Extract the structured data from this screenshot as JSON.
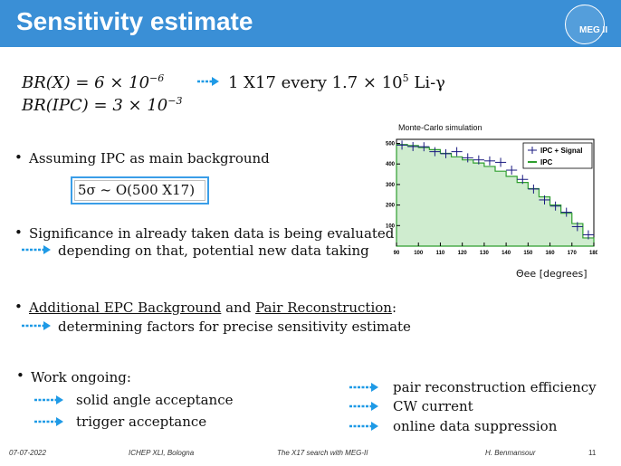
{
  "title": "Sensitivity estimate",
  "logo": {
    "text": "MEG II"
  },
  "formulas": {
    "br_x_lhs": "BR(X) = 6 × 10",
    "br_x_exp": "−6",
    "result_pre": "1 X17 every 1.7 × 10",
    "result_exp": "5",
    "result_post": " Li-γ",
    "br_ipc_lhs": "BR(IPC) = 3 × 10",
    "br_ipc_exp": "−3"
  },
  "bullets": {
    "ipc_background": "Assuming IPC as main background",
    "five_sigma": "5σ ~ O(500 X17)",
    "significance": "Significance in already taken data is being evaluated",
    "significance_sub": "depending on that, potential new data taking",
    "additional_epc": "Additional EPC Background",
    "and": " and ",
    "pair_reco": "Pair Reconstruction",
    "colon": ":",
    "factors_sub": "determining factors for precise sensitivity estimate",
    "work": "Work ongoing:",
    "work_left": [
      "solid angle acceptance",
      "trigger acceptance"
    ],
    "work_right": [
      "pair reconstruction efficiency",
      "CW current",
      "online data suppression"
    ]
  },
  "footer": {
    "date": "07-07-2022",
    "conference": "ICHEP XLI, Bologna",
    "talk": "The X17 search with MEG-II",
    "author": "H. Benmansour",
    "page": "11"
  },
  "chart_data": {
    "type": "histogram",
    "title": "Monte-Carlo simulation",
    "xlabel": "Θee [degrees]",
    "xlim": [
      90,
      180
    ],
    "ylim": [
      0,
      520
    ],
    "x_ticks": [
      "90",
      "100",
      "110",
      "120",
      "130",
      "140",
      "150",
      "160",
      "170",
      "180"
    ],
    "y_ticks": [
      "100",
      "200",
      "300",
      "400",
      "500"
    ],
    "bin_edges": [
      90,
      95,
      100,
      105,
      110,
      115,
      120,
      125,
      130,
      135,
      140,
      145,
      150,
      155,
      160,
      165,
      170,
      175,
      180
    ],
    "legend": [
      {
        "name": "IPC + Signal",
        "color": "#1a1a80"
      },
      {
        "name": "IPC",
        "color": "#2e9e2e",
        "fill": "#cfeccf"
      }
    ],
    "series": [
      {
        "name": "IPC",
        "values": [
          495,
          490,
          480,
          470,
          452,
          435,
          420,
          405,
          388,
          365,
          340,
          310,
          280,
          240,
          200,
          160,
          110,
          40
        ]
      },
      {
        "name": "IPC + Signal",
        "values": [
          492,
          485,
          484,
          460,
          450,
          460,
          430,
          420,
          415,
          408,
          370,
          325,
          278,
          225,
          195,
          165,
          95,
          55
        ]
      }
    ]
  }
}
